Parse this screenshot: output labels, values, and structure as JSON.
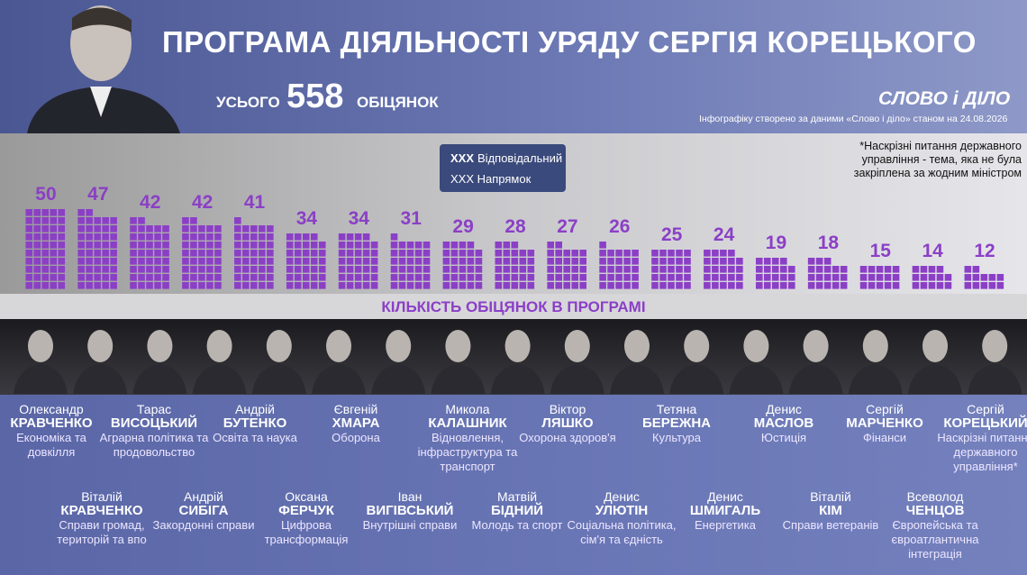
{
  "header": {
    "title": "ПРОГРАМА ДІЯЛЬНОСТІ УРЯДУ СЕРГІЯ КОРЕЦЬКОГО",
    "total_prefix": "УСЬОГО",
    "total": 558,
    "total_suffix": "ОБІЦЯНОК",
    "logo": "СЛОВО і ДІЛО",
    "source": "Інфографіку створено за даними «Слово і діло» станом на 24.08.2026",
    "footnote": "*Наскрізні питання державного управління - тема, яка не була закріплена за жодним міністром"
  },
  "legend": {
    "responsible": {
      "marker": "XXX",
      "label": "Відповідальний"
    },
    "area": {
      "marker": "XXX",
      "label": "Напрямок"
    }
  },
  "chart_data": {
    "type": "waffle",
    "values": [
      50,
      47,
      42,
      42,
      41,
      34,
      34,
      31,
      29,
      28,
      27,
      26,
      25,
      24,
      19,
      18,
      15,
      14,
      12
    ],
    "color": "#8b3fc6",
    "axis_label": "КІЛЬКІСТЬ ОБІЦЯНОК В ПРОГРАМІ"
  },
  "people": {
    "top": [
      {
        "first": "Олександр",
        "last": "КРАВЧЕНКО",
        "area": "Економіка та довкілля"
      },
      {
        "first": "Тарас",
        "last": "ВИСОЦЬКИЙ",
        "area": "Аграрна політика та продовольство"
      },
      {
        "first": "Андрій",
        "last": "БУТЕНКО",
        "area": "Освіта та наука"
      },
      {
        "first": "Євгеній",
        "last": "ХМАРА",
        "area": "Оборона"
      },
      {
        "first": "Микола",
        "last": "КАЛАШНИК",
        "area": "Відновлення, інфраструктура та транспорт"
      },
      {
        "first": "Віктор",
        "last": "ЛЯШКО",
        "area": "Охорона здоров'я"
      },
      {
        "first": "Тетяна",
        "last": "БЕРЕЖНА",
        "area": "Культура"
      },
      {
        "first": "Денис",
        "last": "МАСЛОВ",
        "area": "Юстиція"
      },
      {
        "first": "Сергій",
        "last": "МАРЧЕНКО",
        "area": "Фінанси"
      },
      {
        "first": "Сергій",
        "last": "КОРЕЦЬКИЙ",
        "area": "Наскрізні питання державного управління*"
      }
    ],
    "bottom": [
      {
        "first": "Віталій",
        "last": "КРАВЧЕНКО",
        "area": "Справи громад, територій та впо"
      },
      {
        "first": "Андрій",
        "last": "СИБІГА",
        "area": "Закордонні справи"
      },
      {
        "first": "Оксана",
        "last": "ФЕРЧУК",
        "area": "Цифрова трансформація"
      },
      {
        "first": "Іван",
        "last": "ВИГІВСЬКИЙ",
        "area": "Внутрішні справи"
      },
      {
        "first": "Матвій",
        "last": "БІДНИЙ",
        "area": "Молодь та спорт"
      },
      {
        "first": "Денис",
        "last": "УЛЮТІН",
        "area": "Соціальна політика, сім'я та єдність"
      },
      {
        "first": "Денис",
        "last": "ШМИГАЛЬ",
        "area": "Енергетика"
      },
      {
        "first": "Віталій",
        "last": "КІМ",
        "area": "Справи ветеранів"
      },
      {
        "first": "Всеволод",
        "last": "ЧЕНЦОВ",
        "area": "Європейська та євроатлантична інтеграція"
      }
    ]
  }
}
